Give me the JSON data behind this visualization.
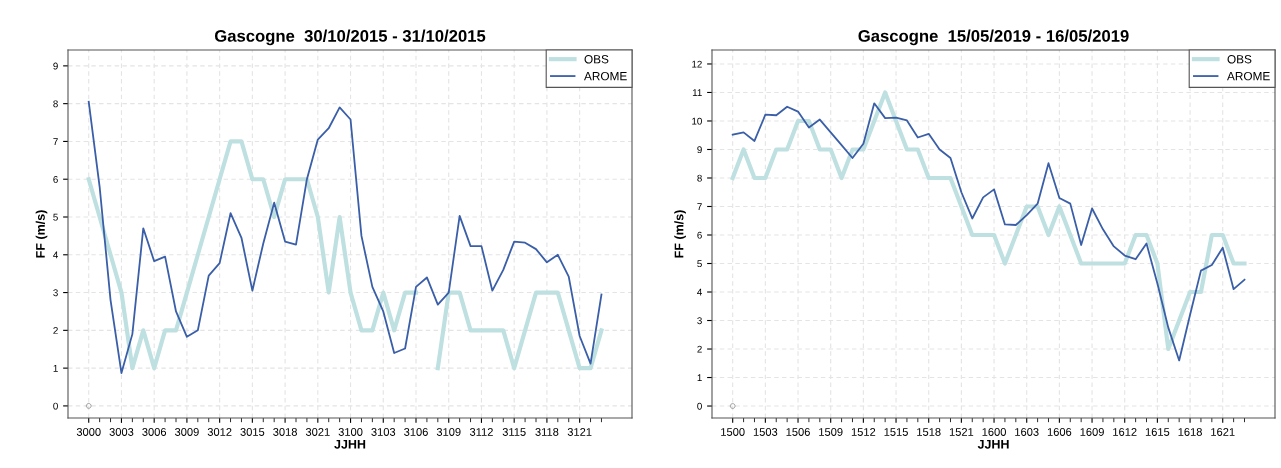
{
  "chart_data": [
    {
      "type": "line",
      "title": "Gascogne  30/10/2015 - 31/10/2015",
      "xlabel": "JJHH",
      "ylabel": "FF (m/s)",
      "categories": [
        "3000",
        null,
        null,
        "3003",
        null,
        null,
        "3006",
        null,
        null,
        "3009",
        null,
        null,
        "3012",
        null,
        null,
        "3015",
        null,
        null,
        "3018",
        null,
        null,
        "3021",
        null,
        null,
        "3100",
        null,
        null,
        "3103",
        null,
        null,
        "3106",
        null,
        null,
        "3109",
        null,
        null,
        "3112",
        null,
        null,
        "3115",
        null,
        null,
        "3118",
        null,
        null,
        "3121",
        null,
        null
      ],
      "series": [
        {
          "name": "OBS",
          "color": "#bfe0e0",
          "values": [
            6,
            5,
            4,
            3,
            1,
            2,
            1,
            2,
            2,
            3,
            4,
            5,
            6,
            7,
            7,
            6,
            6,
            5,
            6,
            6,
            6,
            5,
            3,
            5,
            3,
            2,
            2,
            3,
            2,
            3,
            3,
            null,
            1,
            3,
            3,
            2,
            2,
            2,
            2,
            1,
            2,
            3,
            3,
            3,
            2,
            1,
            1,
            2
          ]
        },
        {
          "name": "AROME",
          "color": "#3a5fa8",
          "values": [
            8.05,
            5.8,
            2.8,
            0.87,
            1.9,
            4.7,
            3.83,
            3.95,
            2.5,
            1.83,
            2.0,
            3.45,
            3.78,
            5.1,
            4.45,
            3.05,
            4.3,
            5.38,
            4.35,
            4.27,
            6.0,
            7.05,
            7.35,
            7.9,
            7.58,
            4.5,
            3.15,
            2.5,
            1.4,
            1.52,
            3.15,
            3.4,
            2.68,
            3.0,
            5.03,
            4.23,
            4.23,
            3.05,
            3.6,
            4.35,
            4.32,
            4.15,
            3.8,
            4.0,
            3.42,
            1.85,
            1.12,
            2.95
          ]
        },
        {
          "type": "scatter",
          "color": "#999999",
          "marker": "circle",
          "values": [
            0,
            null,
            null,
            null,
            null,
            null,
            null,
            null,
            null,
            null,
            null,
            null,
            null,
            null,
            null,
            null,
            null,
            null,
            null,
            null,
            null,
            null,
            null,
            null,
            null,
            null,
            null,
            null,
            null,
            null,
            null,
            null,
            null,
            null,
            null,
            null,
            null,
            null,
            null,
            null,
            null,
            null,
            null,
            null,
            null,
            null,
            null,
            null
          ]
        }
      ],
      "ylim": [
        -0.32,
        9.42
      ],
      "yticks": [
        0,
        1,
        2,
        3,
        4,
        5,
        6,
        7,
        8,
        9
      ],
      "grid": true,
      "legend": "top right"
    },
    {
      "type": "line",
      "title": "Gascogne  15/05/2019 - 16/05/2019",
      "xlabel": "JJHH",
      "ylabel": "FF (m/s)",
      "categories": [
        "1500",
        null,
        null,
        "1503",
        null,
        null,
        "1506",
        null,
        null,
        "1509",
        null,
        null,
        "1512",
        null,
        null,
        "1515",
        null,
        null,
        "1518",
        null,
        null,
        "1521",
        null,
        null,
        "1600",
        null,
        null,
        "1603",
        null,
        null,
        "1606",
        null,
        null,
        "1609",
        null,
        null,
        "1612",
        null,
        null,
        "1615",
        null,
        null,
        "1618",
        null,
        null,
        "1621",
        null,
        null
      ],
      "series": [
        {
          "name": "OBS",
          "color": "#bfe0e0",
          "values": [
            8,
            9,
            8,
            8,
            9,
            9,
            10,
            10,
            9,
            9,
            8,
            9,
            9,
            10,
            11,
            10,
            9,
            9,
            8,
            8,
            8,
            7,
            6,
            6,
            6,
            5,
            6,
            7,
            7,
            6,
            7,
            6,
            5,
            5,
            5,
            5,
            5,
            6,
            6,
            5,
            2,
            3,
            4,
            4,
            6,
            6,
            5,
            5
          ]
        },
        {
          "name": "AROME",
          "color": "#3a5fa8",
          "values": [
            9.52,
            9.6,
            9.3,
            10.22,
            10.2,
            10.5,
            10.33,
            9.77,
            10.05,
            9.6,
            9.15,
            8.7,
            9.2,
            10.62,
            10.1,
            10.12,
            10.02,
            9.42,
            9.55,
            9.0,
            8.7,
            7.5,
            6.58,
            7.32,
            7.6,
            6.37,
            6.35,
            6.7,
            7.1,
            8.52,
            7.3,
            7.1,
            5.65,
            6.93,
            6.2,
            5.6,
            5.28,
            5.15,
            5.7,
            4.3,
            2.75,
            1.6,
            3.2,
            4.75,
            4.95,
            5.55,
            4.1,
            4.43
          ]
        },
        {
          "type": "scatter",
          "color": "#999999",
          "marker": "circle",
          "values": [
            0,
            null,
            null,
            null,
            null,
            null,
            null,
            null,
            null,
            null,
            null,
            null,
            null,
            null,
            null,
            null,
            null,
            null,
            null,
            null,
            null,
            null,
            null,
            null,
            null,
            null,
            null,
            null,
            null,
            null,
            null,
            null,
            null,
            null,
            null,
            null,
            null,
            null,
            null,
            null,
            null,
            null,
            null,
            null,
            null,
            null,
            null,
            null
          ]
        }
      ],
      "ylim": [
        -0.42,
        12.49
      ],
      "yticks": [
        0,
        1,
        2,
        3,
        4,
        5,
        6,
        7,
        8,
        9,
        10,
        11,
        12
      ],
      "grid": true,
      "legend": "top right"
    }
  ]
}
